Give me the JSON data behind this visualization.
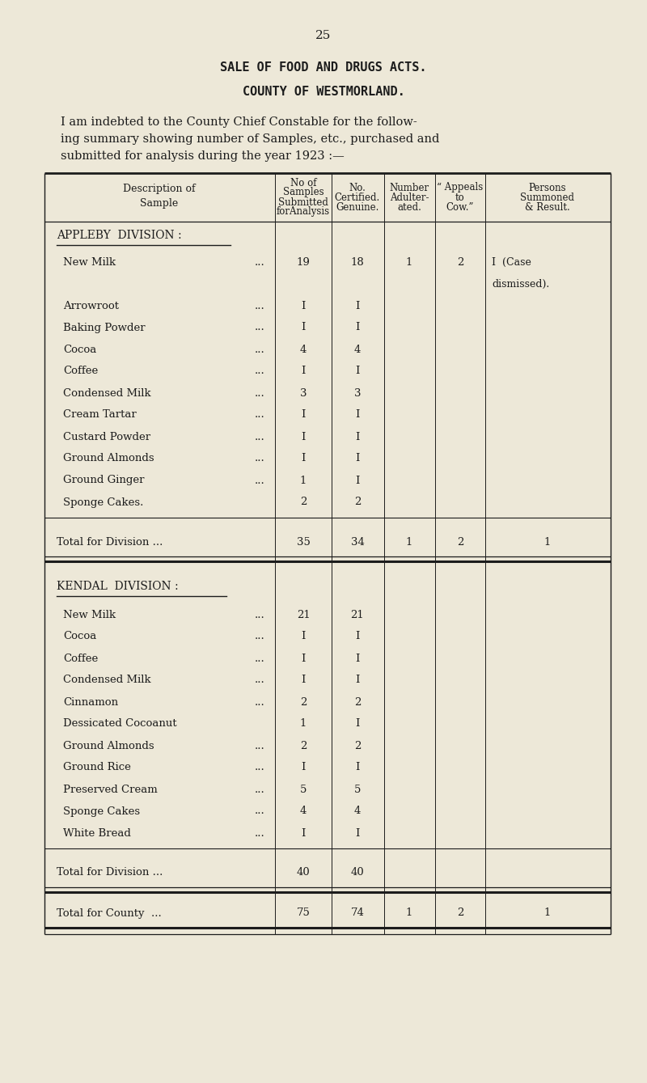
{
  "page_number": "25",
  "title1": "SALE OF FOOD AND DRUGS ACTS.",
  "title2": "COUNTY OF WESTMORLAND.",
  "intro_line1": "I am indebted to the County Chief Constable for the follow-",
  "intro_line2": "ing summary showing number of Samples, etc., purchased and",
  "intro_line3": "submitted for analysis during the year 1923 :—",
  "col_headers_row1": [
    "Description of",
    "No of",
    "No.",
    "Number",
    "“ Appeals",
    "Persons"
  ],
  "col_headers_row2": [
    "Sample",
    "Samples",
    "Certified.",
    "Adulter-",
    "to",
    "Summoned"
  ],
  "col_headers_row3": [
    "",
    "Submitted",
    "Genuine.",
    "ated.",
    "Cow.”",
    "& Result."
  ],
  "col_headers_row4": [
    "",
    "forAnalysis",
    "",
    "",
    "",
    ""
  ],
  "section1_header": "APPLEBY  DIVISION :",
  "section1_rows": [
    [
      "New Milk",
      "...",
      "19",
      "18",
      "1",
      "2",
      "I  (Case"
    ],
    [
      "",
      "",
      "",
      "",
      "",
      "",
      "dismissed)."
    ],
    [
      "Arrowroot",
      "...",
      "I",
      "I",
      "",
      "",
      ""
    ],
    [
      "Baking Powder",
      "...",
      "I",
      "I",
      "",
      "",
      ""
    ],
    [
      "Cocoa",
      "...",
      "4",
      "4",
      "",
      "",
      ""
    ],
    [
      "Coffee",
      "...",
      "I",
      "I",
      "",
      "",
      ""
    ],
    [
      "Condensed Milk",
      "...",
      "3",
      "3",
      "",
      "",
      ""
    ],
    [
      "Cream Tartar",
      "...",
      "I",
      "I",
      "",
      "",
      ""
    ],
    [
      "Custard Powder",
      "...",
      "I",
      "I",
      "",
      "",
      ""
    ],
    [
      "Ground Almonds",
      "...",
      "I",
      "I",
      "",
      "",
      ""
    ],
    [
      "Ground Ginger",
      "...",
      "1",
      "I",
      "",
      "",
      ""
    ],
    [
      "Sponge Cakes.",
      "",
      "2",
      "2",
      "",
      "",
      ""
    ]
  ],
  "section1_total_label": "Total for Division ...",
  "section1_total_vals": [
    "35",
    "34",
    "1",
    "2",
    "1"
  ],
  "section2_header": "KENDAL  DIVISION :",
  "section2_rows": [
    [
      "New Milk",
      "...",
      "21",
      "21",
      "",
      "",
      ""
    ],
    [
      "Cocoa",
      "...",
      "I",
      "I",
      "",
      "",
      ""
    ],
    [
      "Coffee",
      "...",
      "I",
      "I",
      "",
      "",
      ""
    ],
    [
      "Condensed Milk",
      "...",
      "I",
      "I",
      "",
      "",
      ""
    ],
    [
      "Cinnamon",
      "...",
      "2",
      "2",
      "",
      "",
      ""
    ],
    [
      "Dessicated Cocoanut",
      "",
      "1",
      "I",
      "",
      "",
      ""
    ],
    [
      "Ground Almonds",
      "...",
      "2",
      "2",
      "",
      "",
      ""
    ],
    [
      "Ground Rice",
      "...",
      "I",
      "I",
      "",
      "",
      ""
    ],
    [
      "Preserved Cream",
      "...",
      "5",
      "5",
      "",
      "",
      ""
    ],
    [
      "Sponge Cakes",
      "...",
      "4",
      "4",
      "",
      "",
      ""
    ],
    [
      "White Bread",
      "...",
      "I",
      "I",
      "",
      "",
      ""
    ]
  ],
  "section2_total_label": "Total for Division ...",
  "section2_total_vals": [
    "40",
    "40",
    "",
    "",
    ""
  ],
  "county_total_label": "Total for County  ...",
  "county_total_vals": [
    "75",
    "74",
    "1",
    "2",
    "1"
  ],
  "bg_color": "#ede8d8",
  "text_color": "#1c1c1c",
  "line_color": "#1c1c1c"
}
